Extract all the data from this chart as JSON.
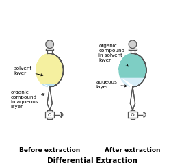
{
  "fig_width": 2.69,
  "fig_height": 2.44,
  "dpi": 100,
  "bg_color": "#ffffff",
  "title": "Differential Extraction",
  "title_fontsize": 7.5,
  "title_bold": true,
  "before_label": "Before extraction",
  "after_label": "After extraction",
  "label_fontsize": 6.5,
  "annotation_fontsize": 5.2,
  "color_yellow": "#f5f0a0",
  "color_blue_light": "#b8e0f0",
  "color_green": "#7ecec4",
  "color_blue_very_light": "#d8eef8",
  "color_outline": "#555555",
  "color_stopper_gray": "#d0d0d0"
}
